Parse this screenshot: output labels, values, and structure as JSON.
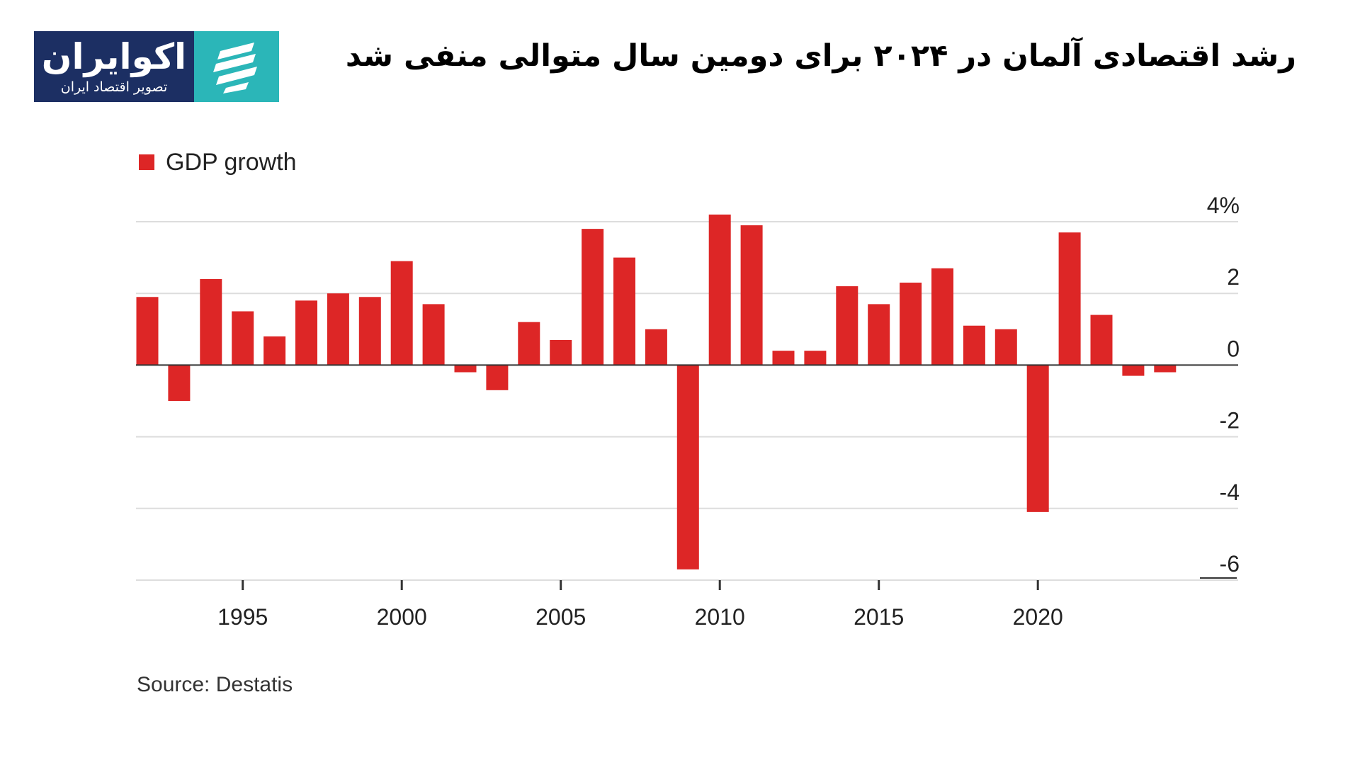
{
  "logo": {
    "name": "اکوایران",
    "tagline": "تصویر اقتصاد ایران"
  },
  "headline": "رشد اقتصادی آلمان در ۲۰۲۴ برای دومین سال متوالی منفی شد",
  "chart_data": {
    "type": "bar",
    "title": "",
    "legend": [
      "GDP growth"
    ],
    "legend_position": "top-left",
    "x": [
      1992,
      1993,
      1994,
      1995,
      1996,
      1997,
      1998,
      1999,
      2000,
      2001,
      2002,
      2003,
      2004,
      2005,
      2006,
      2007,
      2008,
      2009,
      2010,
      2011,
      2012,
      2013,
      2014,
      2015,
      2016,
      2017,
      2018,
      2019,
      2020,
      2021,
      2022,
      2023,
      2024
    ],
    "values": [
      1.9,
      -1.0,
      2.4,
      1.5,
      0.8,
      1.8,
      2.0,
      1.9,
      2.9,
      1.7,
      -0.2,
      -0.7,
      1.2,
      0.7,
      3.8,
      3.0,
      1.0,
      -5.7,
      4.2,
      3.9,
      0.4,
      0.4,
      2.2,
      1.7,
      2.3,
      2.7,
      1.1,
      1.0,
      -4.1,
      3.7,
      1.4,
      -0.3,
      -0.2
    ],
    "xticks": [
      1995,
      2000,
      2005,
      2010,
      2015,
      2020
    ],
    "xtick_labels": [
      "1995",
      "2000",
      "2005",
      "2010",
      "2015",
      "2020"
    ],
    "yticks": [
      4,
      2,
      0,
      -2,
      -4,
      -6
    ],
    "ytick_labels": [
      "4%",
      "2",
      "0",
      "-2",
      "-4",
      "-6"
    ],
    "ylim": [
      -6,
      4
    ],
    "xlabel": "",
    "ylabel": "",
    "grid": true,
    "y_axis_side": "right",
    "bar_color": "#dd2626"
  },
  "source": "Source: Destatis",
  "colors": {
    "bar": "#dd2626",
    "logo_navy": "#1c2f63",
    "logo_teal": "#2bb6b8",
    "grid": "#dddddd",
    "zero_line": "#333333"
  }
}
